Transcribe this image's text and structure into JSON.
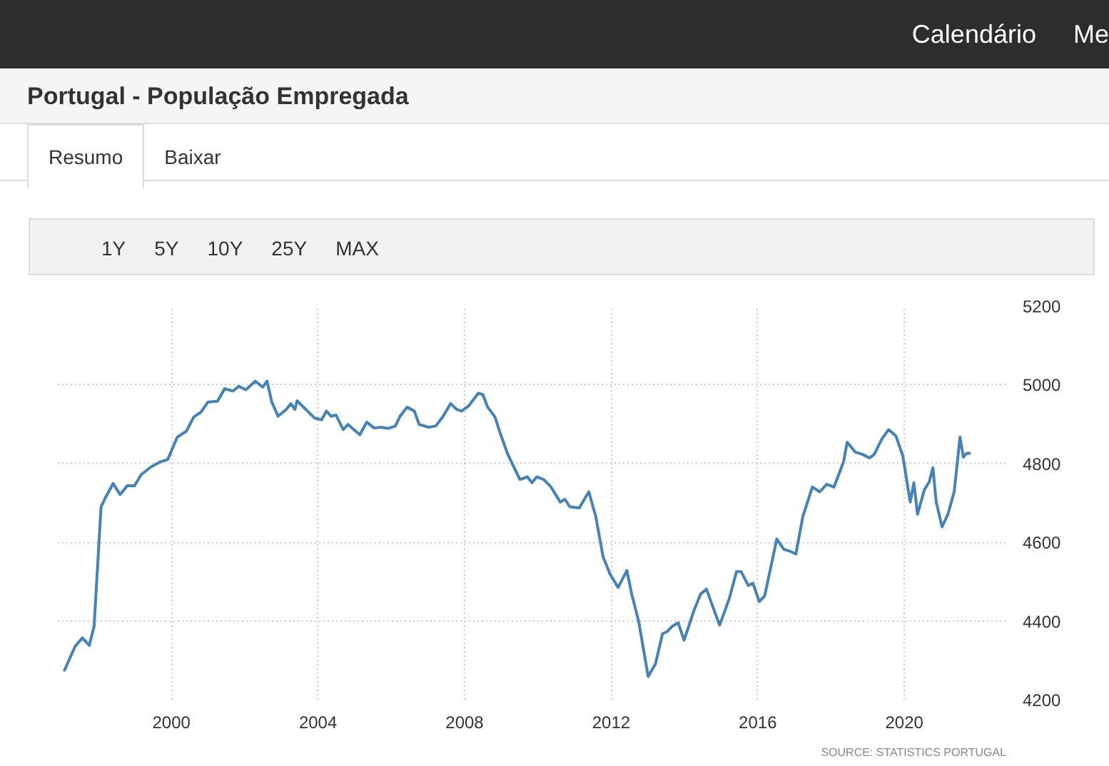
{
  "chart_data": {
    "type": "line",
    "title": "Portugal - População Empregada",
    "annotations": [
      "Calendário",
      "Me",
      "Resumo",
      "Baixar",
      "1Y",
      "5Y",
      "10Y",
      "25Y",
      "MAX",
      "SOURCE: STATISTICS PORTUGAL"
    ],
    "x": [
      1997.07,
      1997.37,
      1997.57,
      1997.76,
      1997.89,
      1998.08,
      1998.21,
      1998.41,
      1998.6,
      1998.8,
      1998.99,
      1999.18,
      1999.44,
      1999.7,
      1999.9,
      2000.16,
      2000.41,
      2000.61,
      2000.8,
      2001.0,
      2001.26,
      2001.45,
      2001.68,
      2001.84,
      2002.03,
      2002.29,
      2002.49,
      2002.61,
      2002.74,
      2002.91,
      2003.13,
      2003.26,
      2003.37,
      2003.43,
      2003.65,
      2003.91,
      2004.1,
      2004.23,
      2004.36,
      2004.49,
      2004.69,
      2004.82,
      2005.14,
      2005.33,
      2005.53,
      2005.72,
      2005.92,
      2006.11,
      2006.24,
      2006.43,
      2006.63,
      2006.76,
      2007.02,
      2007.21,
      2007.4,
      2007.62,
      2007.79,
      2007.92,
      2008.11,
      2008.37,
      2008.5,
      2008.63,
      2008.83,
      2008.96,
      2009.18,
      2009.51,
      2009.71,
      2009.84,
      2009.97,
      2010.16,
      2010.36,
      2010.61,
      2010.74,
      2010.87,
      2011.13,
      2011.39,
      2011.58,
      2011.78,
      2011.97,
      2012.19,
      2012.43,
      2012.56,
      2012.75,
      2013.01,
      2013.21,
      2013.4,
      2013.53,
      2013.66,
      2013.83,
      2013.99,
      2014.25,
      2014.44,
      2014.6,
      2014.77,
      2014.96,
      2015.22,
      2015.42,
      2015.55,
      2015.74,
      2015.87,
      2016.04,
      2016.19,
      2016.52,
      2016.71,
      2016.91,
      2017.04,
      2017.23,
      2017.49,
      2017.69,
      2017.88,
      2018.08,
      2018.34,
      2018.44,
      2018.66,
      2018.86,
      2019.05,
      2019.18,
      2019.38,
      2019.57,
      2019.77,
      2019.96,
      2020.16,
      2020.26,
      2020.36,
      2020.55,
      2020.68,
      2020.78,
      2020.87,
      2021.03,
      2021.19,
      2021.36,
      2021.52,
      2021.61,
      2021.71,
      2021.81
    ],
    "series": [
      {
        "color": "#4682b4",
        "values": [
          4272,
          4335,
          4357,
          4338,
          4386,
          4690,
          4715,
          4749,
          4721,
          4744,
          4743,
          4772,
          4791,
          4804,
          4810,
          4867,
          4882,
          4918,
          4930,
          4956,
          4958,
          4990,
          4984,
          4996,
          4987,
          5009,
          4994,
          5009,
          4956,
          4920,
          4937,
          4952,
          4937,
          4959,
          4939,
          4915,
          4911,
          4933,
          4920,
          4923,
          4886,
          4899,
          4873,
          4905,
          4890,
          4892,
          4889,
          4895,
          4920,
          4943,
          4933,
          4899,
          4892,
          4895,
          4918,
          4952,
          4937,
          4933,
          4946,
          4978,
          4975,
          4943,
          4918,
          4880,
          4823,
          4759,
          4766,
          4751,
          4766,
          4759,
          4740,
          4702,
          4709,
          4690,
          4687,
          4728,
          4665,
          4563,
          4519,
          4485,
          4528,
          4468,
          4399,
          4259,
          4291,
          4367,
          4373,
          4386,
          4395,
          4351,
          4424,
          4468,
          4481,
          4437,
          4389,
          4456,
          4525,
          4525,
          4490,
          4496,
          4449,
          4464,
          4608,
          4582,
          4576,
          4570,
          4665,
          4740,
          4728,
          4747,
          4740,
          4804,
          4854,
          4829,
          4823,
          4814,
          4823,
          4861,
          4886,
          4870,
          4819,
          4702,
          4751,
          4671,
          4734,
          4753,
          4789,
          4702,
          4639,
          4671,
          4728,
          4867,
          4816,
          4826,
          4826
        ]
      }
    ],
    "xlim": [
      1996.9,
      2022.8
    ],
    "xticks": [
      2000,
      2004,
      2008,
      2012,
      2016,
      2020
    ],
    "ylim": [
      4200,
      5200
    ],
    "yticks": [
      4200,
      4400,
      4600,
      4800,
      5000,
      5200
    ],
    "grid": true,
    "line_style": "solid"
  }
}
